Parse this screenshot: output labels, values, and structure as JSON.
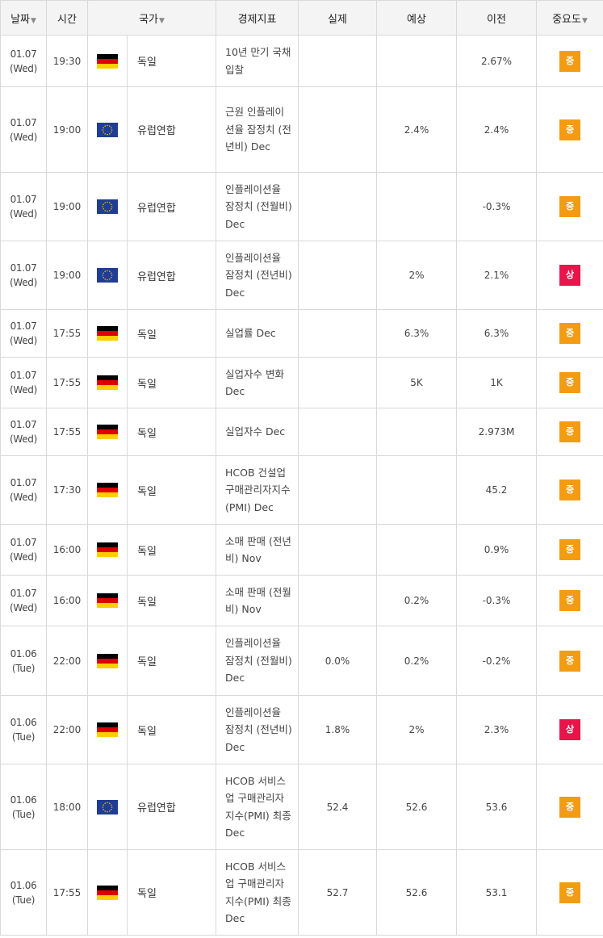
{
  "headers": {
    "date": "날짜",
    "time": "시간",
    "country": "국가",
    "indicator": "경제지표",
    "actual": "실제",
    "forecast": "예상",
    "previous": "이전",
    "importance": "중요도",
    "sort_arrow": "▼"
  },
  "importance_colors": {
    "중": "#f39c12",
    "상": "#e8154a"
  },
  "rows": [
    {
      "day": "01.07",
      "weekday": "(Wed)",
      "time": "19:30",
      "flag": "germany-flag-icon",
      "country": "독일",
      "indicator": "10년 만기 국채 입찰",
      "actual": "",
      "forecast": "",
      "previous": "2.67%",
      "importance": "중"
    },
    {
      "day": "01.07",
      "weekday": "(Wed)",
      "time": "19:00",
      "flag": "eu-flag-icon",
      "country": "유럽연합",
      "indicator": "근원 인플레이션율 잠정치 (전년비) Dec",
      "actual": "",
      "forecast": "2.4%",
      "previous": "2.4%",
      "importance": "중"
    },
    {
      "day": "01.07",
      "weekday": "(Wed)",
      "time": "19:00",
      "flag": "eu-flag-icon",
      "country": "유럽연합",
      "indicator": "인플레이션율 잠정치 (전월비) Dec",
      "actual": "",
      "forecast": "",
      "previous": "-0.3%",
      "importance": "중"
    },
    {
      "day": "01.07",
      "weekday": "(Wed)",
      "time": "19:00",
      "flag": "eu-flag-icon",
      "country": "유럽연합",
      "indicator": "인플레이션율 잠정치 (전년비) Dec",
      "actual": "",
      "forecast": "2%",
      "previous": "2.1%",
      "importance": "상"
    },
    {
      "day": "01.07",
      "weekday": "(Wed)",
      "time": "17:55",
      "flag": "germany-flag-icon",
      "country": "독일",
      "indicator": "실업률 Dec",
      "actual": "",
      "forecast": "6.3%",
      "previous": "6.3%",
      "importance": "중"
    },
    {
      "day": "01.07",
      "weekday": "(Wed)",
      "time": "17:55",
      "flag": "germany-flag-icon",
      "country": "독일",
      "indicator": "실업자수 변화 Dec",
      "actual": "",
      "forecast": "5K",
      "previous": "1K",
      "importance": "중"
    },
    {
      "day": "01.07",
      "weekday": "(Wed)",
      "time": "17:55",
      "flag": "germany-flag-icon",
      "country": "독일",
      "indicator": "실업자수 Dec",
      "actual": "",
      "forecast": "",
      "previous": "2.973M",
      "importance": "중"
    },
    {
      "day": "01.07",
      "weekday": "(Wed)",
      "time": "17:30",
      "flag": "germany-flag-icon",
      "country": "독일",
      "indicator": "HCOB 건설업 구매관리자지수(PMI) Dec",
      "actual": "",
      "forecast": "",
      "previous": "45.2",
      "importance": "중"
    },
    {
      "day": "01.07",
      "weekday": "(Wed)",
      "time": "16:00",
      "flag": "germany-flag-icon",
      "country": "독일",
      "indicator": "소매 판매 (전년비) Nov",
      "actual": "",
      "forecast": "",
      "previous": "0.9%",
      "importance": "중"
    },
    {
      "day": "01.07",
      "weekday": "(Wed)",
      "time": "16:00",
      "flag": "germany-flag-icon",
      "country": "독일",
      "indicator": "소매 판매 (전월비) Nov",
      "actual": "",
      "forecast": "0.2%",
      "previous": "-0.3%",
      "importance": "중"
    },
    {
      "day": "01.06",
      "weekday": "(Tue)",
      "time": "22:00",
      "flag": "germany-flag-icon",
      "country": "독일",
      "indicator": "인플레이션율 잠정치 (전월비) Dec",
      "actual": "0.0%",
      "forecast": "0.2%",
      "previous": "-0.2%",
      "importance": "중"
    },
    {
      "day": "01.06",
      "weekday": "(Tue)",
      "time": "22:00",
      "flag": "germany-flag-icon",
      "country": "독일",
      "indicator": "인플레이션율 잠정치 (전년비) Dec",
      "actual": "1.8%",
      "forecast": "2%",
      "previous": "2.3%",
      "importance": "상"
    },
    {
      "day": "01.06",
      "weekday": "(Tue)",
      "time": "18:00",
      "flag": "eu-flag-icon",
      "country": "유럽연합",
      "indicator": "HCOB 서비스업 구매관리자지수(PMI) 최종 Dec",
      "actual": "52.4",
      "forecast": "52.6",
      "previous": "53.6",
      "importance": "중"
    },
    {
      "day": "01.06",
      "weekday": "(Tue)",
      "time": "17:55",
      "flag": "germany-flag-icon",
      "country": "독일",
      "indicator": "HCOB 서비스업 구매관리자지수(PMI) 최종 Dec",
      "actual": "52.7",
      "forecast": "52.6",
      "previous": "53.1",
      "importance": "중"
    }
  ]
}
